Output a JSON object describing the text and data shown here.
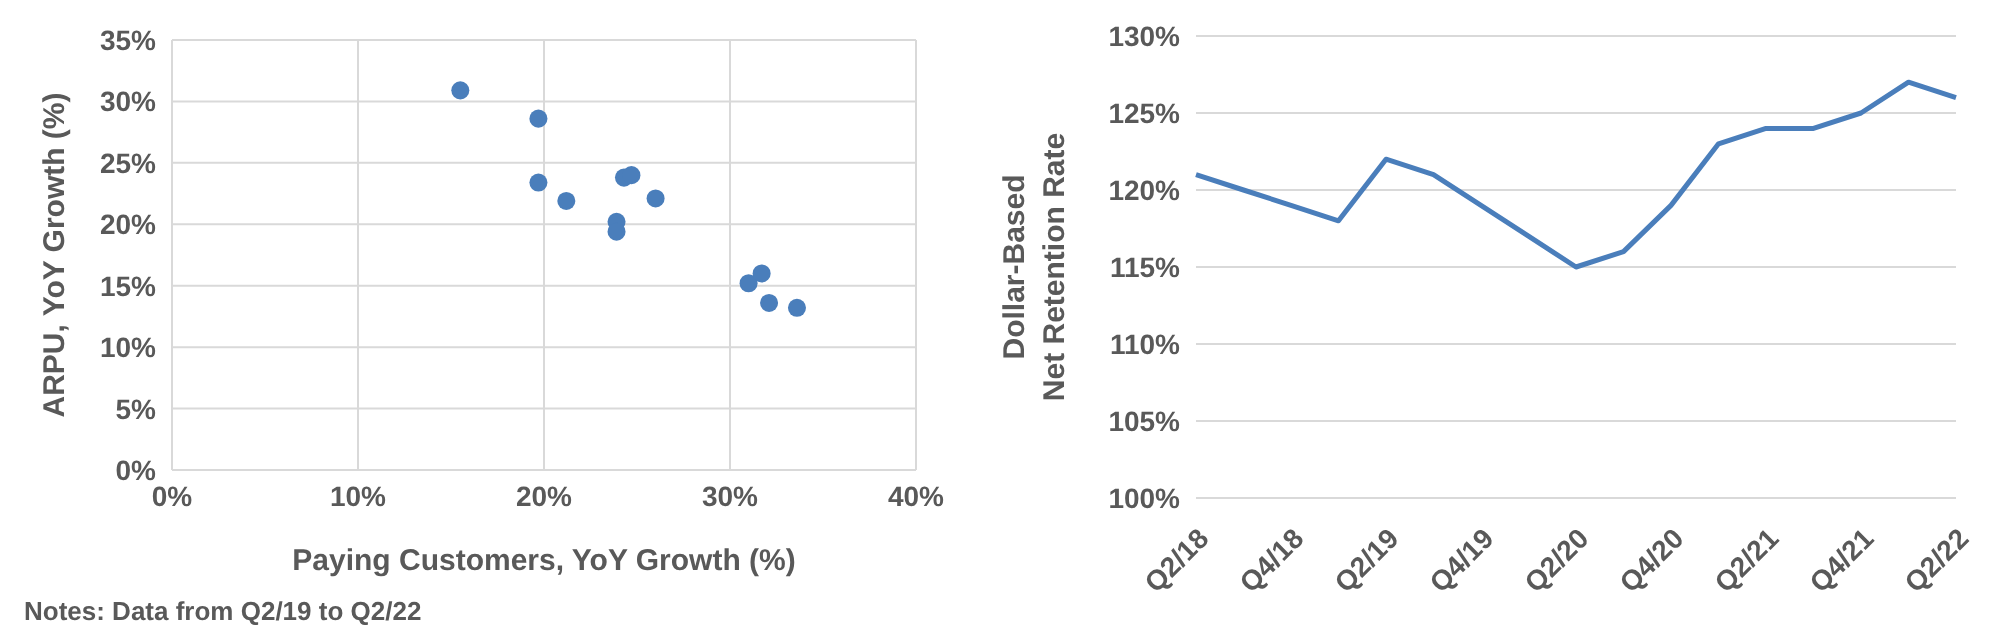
{
  "chart_data": [
    {
      "type": "scatter",
      "xlabel": "Paying Customers, YoY Growth (%)",
      "ylabel": "ARPU, YoY Growth (%)",
      "x": [
        15.5,
        19.7,
        19.7,
        21.2,
        23.9,
        23.9,
        24.3,
        24.7,
        26.0,
        31.0,
        31.7,
        32.1,
        33.6
      ],
      "series": [
        {
          "color": "#4a7ebb",
          "values": [
            30.9,
            28.6,
            23.4,
            21.9,
            20.2,
            19.4,
            23.8,
            24.0,
            22.1,
            15.2,
            16.0,
            13.6,
            13.2
          ]
        }
      ],
      "xlim": [
        0,
        40
      ],
      "xticks": [
        {
          "value": 0,
          "label": "0%"
        },
        {
          "value": 10,
          "label": "10%"
        },
        {
          "value": 20,
          "label": "20%"
        },
        {
          "value": 30,
          "label": "30%"
        },
        {
          "value": 40,
          "label": "40%"
        }
      ],
      "ylim": [
        0,
        35
      ],
      "yticks": [
        {
          "value": 0,
          "label": "0%"
        },
        {
          "value": 5,
          "label": "5%"
        },
        {
          "value": 10,
          "label": "10%"
        },
        {
          "value": 15,
          "label": "15%"
        },
        {
          "value": 20,
          "label": "20%"
        },
        {
          "value": 25,
          "label": "25%"
        },
        {
          "value": 30,
          "label": "30%"
        },
        {
          "value": 35,
          "label": "35%"
        }
      ],
      "grid": true,
      "marker": "circle",
      "annotations": [
        "Notes: Data from Q2/19 to Q2/22"
      ]
    },
    {
      "type": "line",
      "ylabel": "Dollar-Based\nNet Retention Rate",
      "categories": [
        "Q2/18",
        null,
        "Q4/18",
        null,
        "Q2/19",
        null,
        "Q4/19",
        null,
        "Q2/20",
        null,
        "Q4/20",
        null,
        "Q2/21",
        null,
        "Q4/21",
        null,
        "Q2/22"
      ],
      "series": [
        {
          "color": "#4a7ebb",
          "values": [
            121,
            120,
            119,
            118,
            122,
            121,
            119,
            117,
            115,
            116,
            119,
            123,
            124,
            124,
            125,
            127,
            126
          ]
        }
      ],
      "ylim": [
        100,
        130
      ],
      "yticks": [
        {
          "value": 100,
          "label": "100%"
        },
        {
          "value": 105,
          "label": "105%"
        },
        {
          "value": 110,
          "label": "110%"
        },
        {
          "value": 115,
          "label": "115%"
        },
        {
          "value": 120,
          "label": "120%"
        },
        {
          "value": 125,
          "label": "125%"
        },
        {
          "value": 130,
          "label": "130%"
        }
      ],
      "grid": "y",
      "marker": "none",
      "line_style": "solid"
    }
  ]
}
